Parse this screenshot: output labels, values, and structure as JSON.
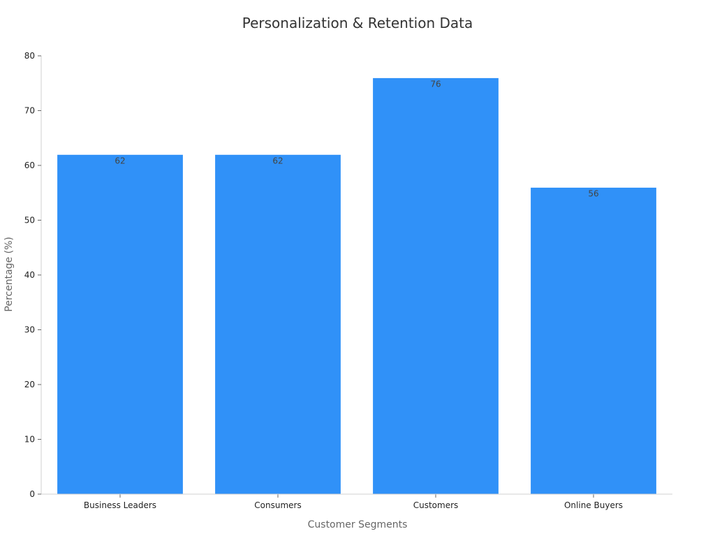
{
  "chart_data": {
    "type": "bar",
    "title": "Personalization & Retention Data",
    "xlabel": "Customer Segments",
    "ylabel": "Percentage (%)",
    "categories": [
      "Business Leaders",
      "Consumers",
      "Customers",
      "Online Buyers"
    ],
    "values": [
      62,
      62,
      76,
      56
    ],
    "data_labels": [
      "62",
      "62",
      "76",
      "56"
    ],
    "ylim": [
      0,
      80
    ],
    "yticks": [
      0,
      10,
      20,
      30,
      40,
      50,
      60,
      70,
      80
    ],
    "ytick_labels": [
      "0",
      "10",
      "20",
      "30",
      "40",
      "50",
      "60",
      "70",
      "80"
    ],
    "grid": false,
    "legend": "none",
    "bar_color": "#3091F8"
  }
}
